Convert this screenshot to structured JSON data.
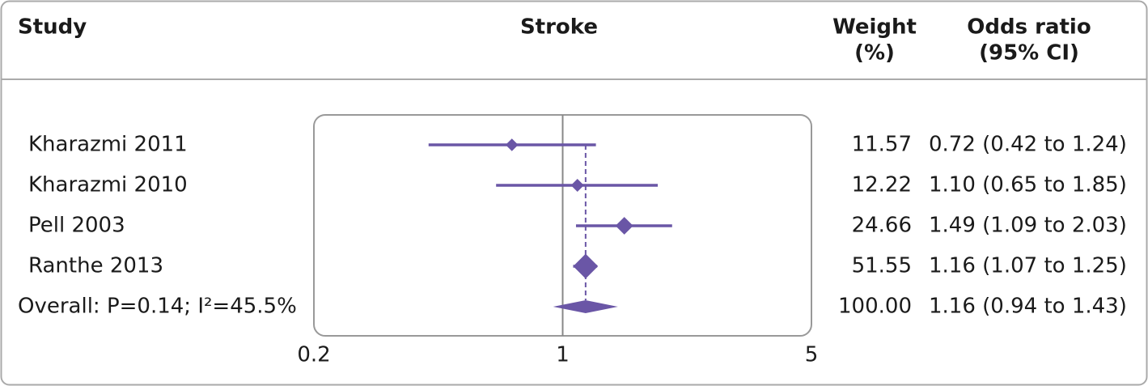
{
  "chart_data": {
    "type": "forest",
    "headers": {
      "study": "Study",
      "plot": "Stroke",
      "weight": [
        "Weight",
        "(%)"
      ],
      "or": [
        "Odds ratio",
        "(95% CI)"
      ]
    },
    "studies": [
      {
        "name": "Kharazmi 2011",
        "weight": 11.57,
        "or": 0.72,
        "lo": 0.42,
        "hi": 1.24,
        "ci_label": "0.72 (0.42 to 1.24)"
      },
      {
        "name": "Kharazmi 2010",
        "weight": 12.22,
        "or": 1.1,
        "lo": 0.65,
        "hi": 1.85,
        "ci_label": "1.10 (0.65 to 1.85)"
      },
      {
        "name": "Pell 2003",
        "weight": 24.66,
        "or": 1.49,
        "lo": 1.09,
        "hi": 2.03,
        "ci_label": "1.49 (1.09 to 2.03)"
      },
      {
        "name": "Ranthe 2013",
        "weight": 51.55,
        "or": 1.16,
        "lo": 1.07,
        "hi": 1.25,
        "ci_label": "1.16 (1.07 to 1.25)"
      }
    ],
    "overall": {
      "name": "Overall: P=0.14; I²=45.5%",
      "weight": {
        "value": 100,
        "label": "100.00"
      },
      "or": 1.16,
      "lo": 0.94,
      "hi": 1.43,
      "ci_label": "1.16 (0.94 to 1.43)"
    },
    "xlim": [
      0.2,
      5
    ],
    "xticks": [
      0.2,
      1,
      5
    ],
    "log_x": true,
    "color": "#6a56a6"
  }
}
